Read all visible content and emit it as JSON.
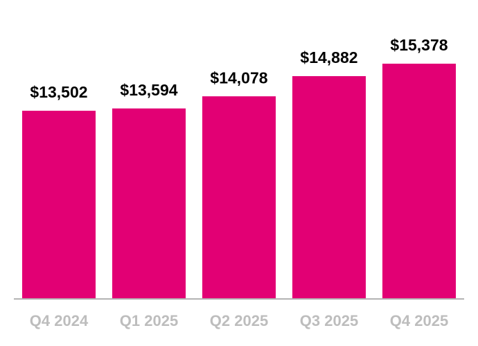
{
  "chart_data": {
    "type": "bar",
    "categories": [
      "Q4 2024",
      "Q1 2025",
      "Q2 2025",
      "Q3 2025",
      "Q4 2025"
    ],
    "values": [
      13502,
      13594,
      14078,
      14882,
      15378
    ],
    "value_labels": [
      "$13,502",
      "$13,594",
      "$14,078",
      "$14,882",
      "$15,378"
    ],
    "color": "#e20074",
    "ylim": [
      6000,
      17000
    ]
  }
}
